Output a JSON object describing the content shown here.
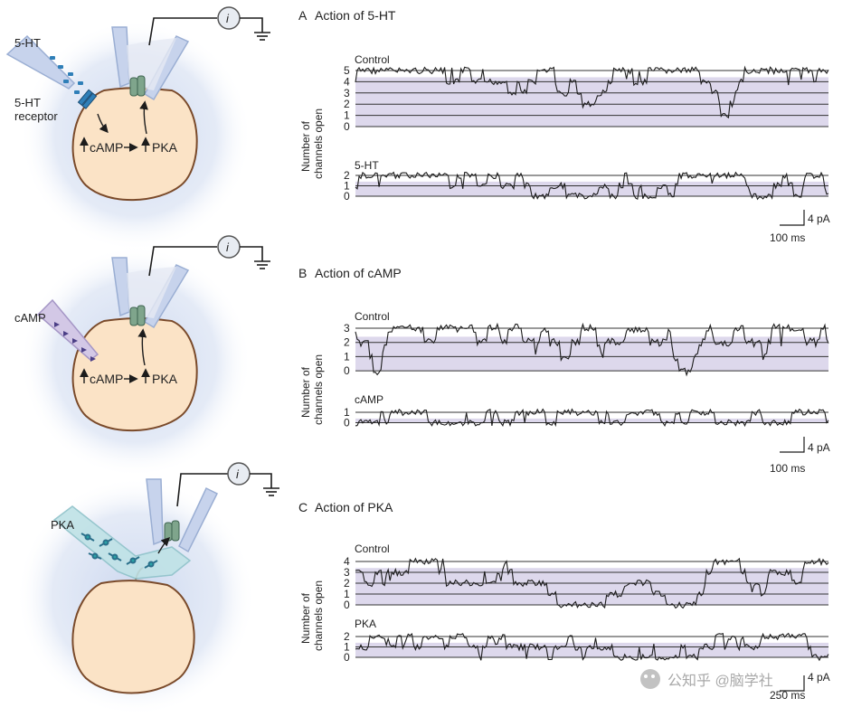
{
  "rows": [
    {
      "diagram": {
        "drug_label": "5-HT",
        "receptor_label": [
          "5-HT",
          "receptor"
        ],
        "camp_label": "cAMP",
        "pka_label": "PKA",
        "meter_label": "i"
      },
      "trace_panel": {
        "letter": "A",
        "title": "Action of 5-HT",
        "ylabel": [
          "Number of",
          "channels open"
        ],
        "top": {
          "label": "Control",
          "levels": [
            "5",
            "4",
            "3",
            "2",
            "1",
            "0"
          ]
        },
        "bottom": {
          "label": "5-HT",
          "levels": [
            "2",
            "1",
            "0"
          ]
        },
        "scale": {
          "current": "4 pA",
          "time": "100 ms"
        }
      }
    },
    {
      "diagram": {
        "drug_label": "cAMP",
        "camp_label": "cAMP",
        "pka_label": "PKA",
        "meter_label": "i"
      },
      "trace_panel": {
        "letter": "B",
        "title": "Action of cAMP",
        "ylabel": [
          "Number of",
          "channels open"
        ],
        "top": {
          "label": "Control",
          "levels": [
            "3",
            "2",
            "1",
            "0"
          ]
        },
        "bottom": {
          "label": "cAMP",
          "levels": [
            "1",
            "0"
          ]
        },
        "scale": {
          "current": "4 pA",
          "time": "100 ms"
        }
      }
    },
    {
      "diagram": {
        "drug_label": "PKA",
        "meter_label": "i"
      },
      "trace_panel": {
        "letter": "C",
        "title": "Action of PKA",
        "ylabel": [
          "Number of",
          "channels open"
        ],
        "top": {
          "label": "Control",
          "levels": [
            "4",
            "3",
            "2",
            "1",
            "0"
          ]
        },
        "bottom": {
          "label": "PKA",
          "levels": [
            "2",
            "1",
            "0"
          ]
        },
        "scale": {
          "current": "4 pA",
          "time": "250 ms"
        }
      }
    }
  ],
  "watermark": "公知乎 @脑学社",
  "colors": {
    "cell_fill": "#fbe3c6",
    "cell_stroke": "#7a4a2a",
    "halo": "#c9d5ee",
    "pipette": "#c7d3ec",
    "channel": "#7fa58c",
    "trace_shade": "#ddd8ec",
    "trace_line": "#1c1c1c"
  },
  "icons": [
    "ammeter-icon",
    "ground-icon",
    "ion-channel-icon",
    "receptor-icon"
  ]
}
